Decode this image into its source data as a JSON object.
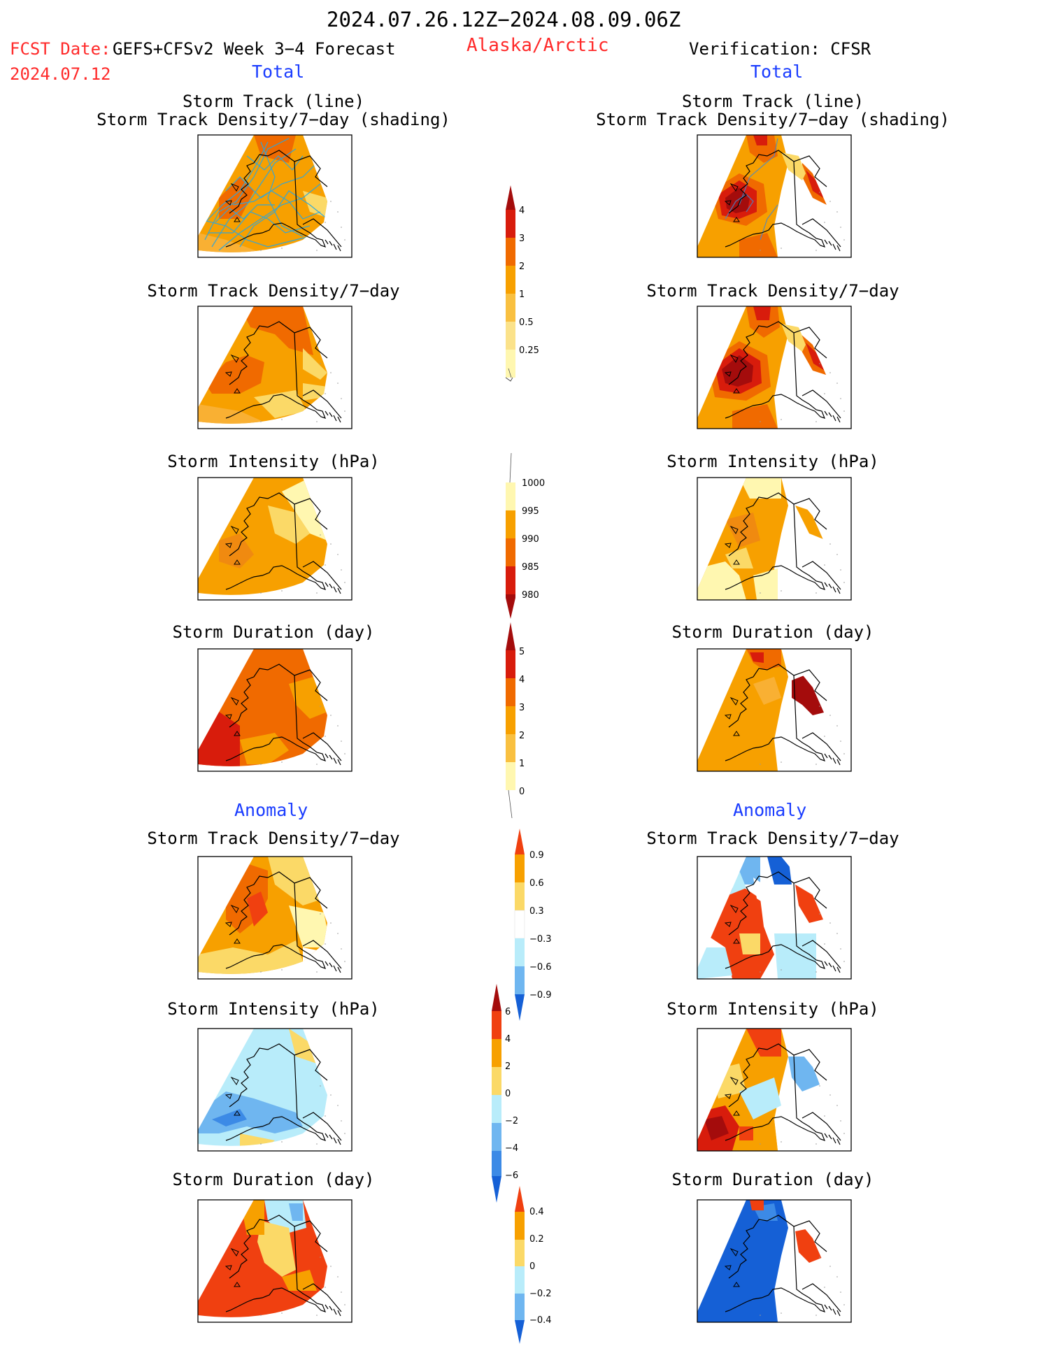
{
  "header": {
    "period": "2024.07.26.12Z−2024.08.09.06Z",
    "fcst_label": "FCST Date:",
    "fcst_model": "GEFS+CFSv2 Week 3−4 Forecast",
    "fcst_date": "2024.07.12",
    "region": "Alaska/Arctic",
    "verification": "Verification: CFSR"
  },
  "sections": {
    "total": "Total",
    "anomaly": "Anomaly"
  },
  "panel_titles": {
    "track_line": "Storm Track (line)",
    "track_shading": "Storm Track Density/7−day (shading)",
    "density": "Storm Track Density/7−day",
    "intensity": "Storm Intensity (hPa)",
    "duration": "Storm Duration (day)"
  },
  "colorbars": {
    "density": [
      "0.25",
      "0.5",
      "1",
      "2",
      "3",
      "4"
    ],
    "intensity": [
      "1000",
      "995",
      "990",
      "985",
      "980"
    ],
    "duration": [
      "0",
      "1",
      "2",
      "3",
      "4",
      "5"
    ],
    "density_anom": [
      "0.9",
      "0.6",
      "0.3",
      "−0.3",
      "−0.6",
      "−0.9"
    ],
    "intensity_anom": [
      "6",
      "4",
      "2",
      "0",
      "−2",
      "−4",
      "−6"
    ],
    "duration_anom": [
      "0.4",
      "0.2",
      "0",
      "−0.2",
      "−0.4"
    ]
  },
  "colors": {
    "header_red": "#ff2a2a",
    "header_blue": "#1a3cff",
    "pale_yellow": "#fff7b0",
    "yellow": "#fbd967",
    "light_orange": "#f9b033",
    "orange": "#f7a000",
    "dark_orange": "#f06a00",
    "red_orange": "#f04010",
    "red": "#d81c0c",
    "dark_red": "#a40c0c",
    "light_blue": "#b8ecfa",
    "mid_blue": "#6fb6f0",
    "blue": "#3c8ae6",
    "dark_blue": "#1560d6",
    "track_line": "#2aa6e0"
  }
}
